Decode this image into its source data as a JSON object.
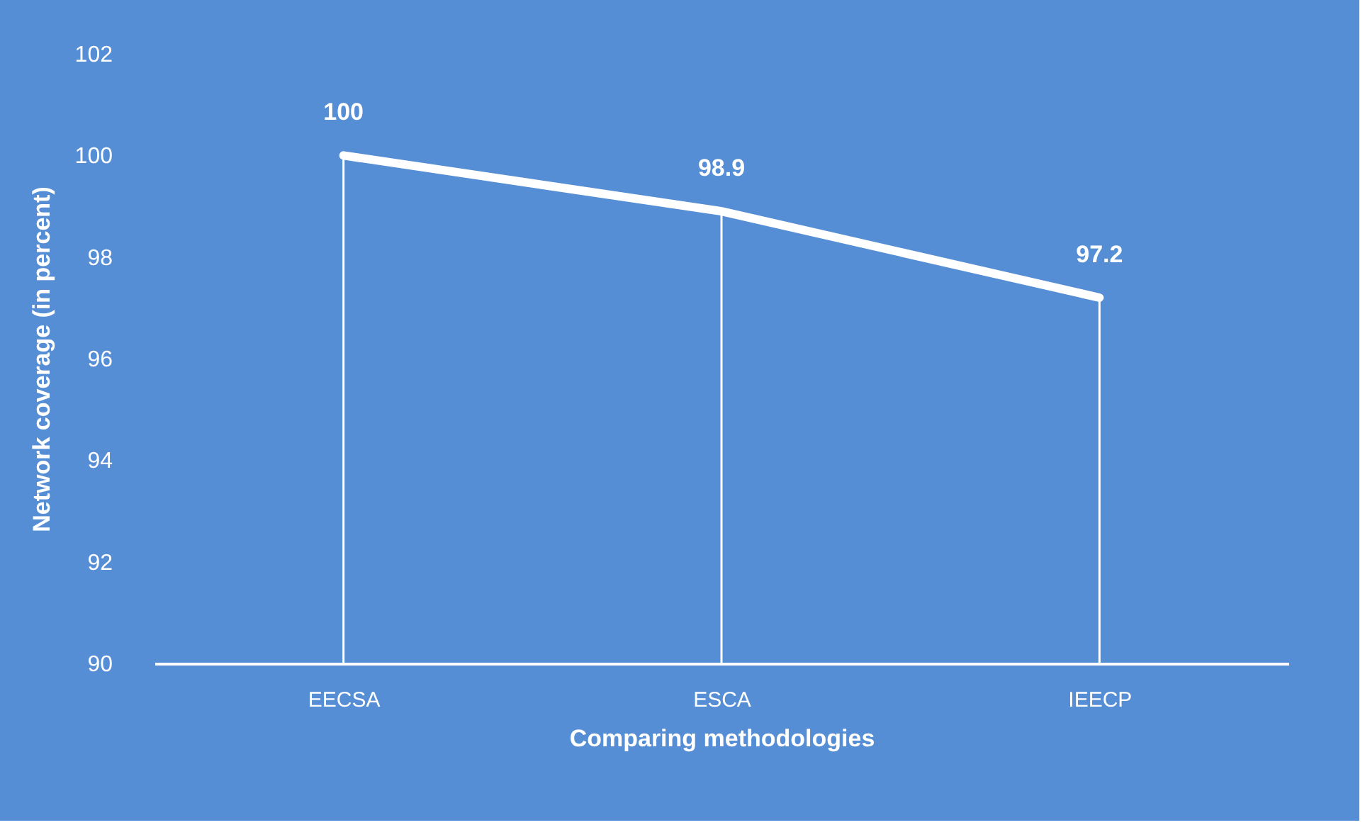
{
  "chart_data": {
    "type": "line",
    "xlabel": "Comparing methodologies",
    "ylabel": "Network coverage (in percent)",
    "categories": [
      "EECSA",
      "ESCA",
      "IEECP"
    ],
    "series": [
      {
        "color": "#ffffff",
        "values": [
          100,
          98.9,
          97.2
        ]
      }
    ],
    "ylim": [
      90,
      102
    ],
    "yticks": [
      90,
      92,
      94,
      96,
      98,
      100,
      102
    ],
    "marker": "none",
    "data_labels": true
  }
}
